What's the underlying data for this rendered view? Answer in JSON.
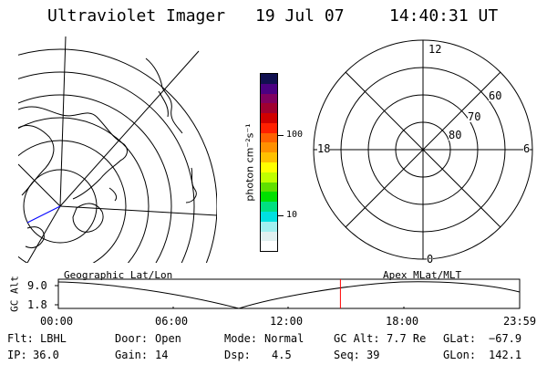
{
  "header": {
    "title": "Ultraviolet Imager",
    "date": "19 Jul 07",
    "time": "14:40:31 UT"
  },
  "colorbar": {
    "label": "photon cm⁻²s⁻¹",
    "tick_labels": [
      "100",
      "10"
    ],
    "colors": [
      "#101050",
      "#4b0082",
      "#800060",
      "#a00030",
      "#d00000",
      "#ff2000",
      "#ff6000",
      "#ff9000",
      "#ffc000",
      "#ffff00",
      "#c0ff00",
      "#60e000",
      "#00e000",
      "#00e080",
      "#00e0e0",
      "#a0f0f0",
      "#e0f0f0",
      "#ffffff"
    ]
  },
  "left_map": {
    "caption": "Geographic Lat/Lon",
    "accent_line_color": "#0000ff"
  },
  "right_map": {
    "caption": "Apex MLat/MLT",
    "mlt_labels": {
      "top": "12",
      "left": "18",
      "right": "6",
      "bottom": "0"
    },
    "lat_labels": [
      "60",
      "70",
      "80"
    ]
  },
  "timeline": {
    "ylabel": "GC Alt",
    "y_ticks": [
      "9.0",
      "1.8"
    ],
    "x_ticks": [
      "00:00",
      "06:00",
      "12:00",
      "18:00",
      "23:59"
    ],
    "marker_color": "#ff0000",
    "marker_time_hours": 14.675
  },
  "status": {
    "row1": [
      {
        "label": "Flt:",
        "value": "LBHL"
      },
      {
        "label": "Door:",
        "value": "Open"
      },
      {
        "label": "Mode:",
        "value": "Normal"
      },
      {
        "label": "GC Alt:",
        "value": "7.7 Re"
      },
      {
        "label": "GLat:",
        "value": "−67.9"
      }
    ],
    "row2": [
      {
        "label": "IP:",
        "value": "36.0"
      },
      {
        "label": "Gain:",
        "value": "14"
      },
      {
        "label": "Dsp:",
        "value": "4.5"
      },
      {
        "label": "Seq:",
        "value": "39"
      },
      {
        "label": "GLon:",
        "value": "142.1"
      }
    ]
  }
}
